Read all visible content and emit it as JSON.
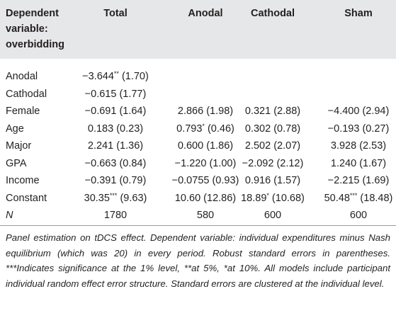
{
  "table": {
    "header": [
      "Dependent variable: overbidding",
      "Total",
      "Anodal",
      "Cathodal",
      "Sham"
    ],
    "rows": [
      {
        "label": "Anodal",
        "cells": [
          "−3.644** (1.70)"
        ]
      },
      {
        "label": "Cathodal",
        "cells": [
          "−0.615 (1.77)"
        ]
      },
      {
        "label": "Female",
        "cells": [
          "−0.691 (1.64)",
          "2.866 (1.98)",
          "0.321 (2.88)",
          "−4.400 (2.94)"
        ]
      },
      {
        "label": "Age",
        "cells": [
          "0.183 (0.23)",
          "0.793* (0.46)",
          "0.302 (0.78)",
          "−0.193 (0.27)"
        ]
      },
      {
        "label": "Major",
        "cells": [
          "2.241 (1.36)",
          "0.600 (1.86)",
          "2.502 (2.07)",
          "3.928 (2.53)"
        ]
      },
      {
        "label": "GPA",
        "cells": [
          "−0.663 (0.84)",
          "−1.220 (1.00)",
          "−2.092 (2.12)",
          "1.240 (1.67)"
        ]
      },
      {
        "label": "Income",
        "cells": [
          "−0.391 (0.79)",
          "−0.0755 (0.93)",
          "0.916 (1.57)",
          "−2.215 (1.69)"
        ]
      },
      {
        "label": "Constant",
        "cells": [
          "30.35*** (9.63)",
          "10.60 (12.86)",
          "18.89* (10.68)",
          "50.48*** (18.48)"
        ]
      },
      {
        "label": "N",
        "cells": [
          "1780",
          "580",
          "600",
          "600"
        ]
      }
    ],
    "note": "Panel estimation on tDCS effect. Dependent variable: individual expenditures minus Nash equilibrium (which was 20) in every period. Robust standard errors in parentheses. ***Indicates significance at the 1% level, **at 5%, *at 10%. All models include participant individual random effect error structure. Standard errors are clustered at the individual level."
  }
}
